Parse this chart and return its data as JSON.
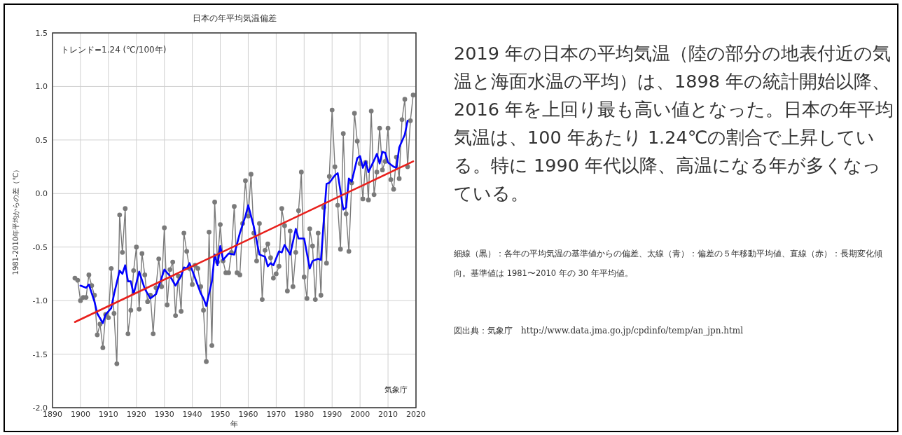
{
  "chart_data": {
    "type": "line",
    "title": "日本の年平均気温偏差",
    "xlabel": "年",
    "ylabel": "1981-2010年平均からの差（℃）",
    "xlim": [
      1890,
      2020
    ],
    "xticks": [
      1890,
      1900,
      1910,
      1920,
      1930,
      1940,
      1950,
      1960,
      1970,
      1980,
      1990,
      2000,
      2010,
      2020
    ],
    "ylim": [
      -2.0,
      1.5
    ],
    "yticks": [
      {
        "value": 1.5,
        "label": "1.5"
      },
      {
        "value": 1.0,
        "label": "1.0"
      },
      {
        "value": 0.5,
        "label": "0.5"
      },
      {
        "value": 0.0,
        "label": "0.0"
      },
      {
        "value": -0.5,
        "label": "-0.5"
      },
      {
        "value": -1.0,
        "label": "-1.0"
      },
      {
        "value": -1.5,
        "label": "-1.5"
      },
      {
        "value": -2.0,
        "label": "-2.0"
      }
    ],
    "grid": true,
    "series": [
      {
        "marker": "circle",
        "color": "#7a7a7a",
        "x": [
          1898,
          1899,
          1900,
          1901,
          1902,
          1903,
          1904,
          1905,
          1906,
          1907,
          1908,
          1909,
          1910,
          1911,
          1912,
          1913,
          1914,
          1915,
          1916,
          1917,
          1918,
          1919,
          1920,
          1921,
          1922,
          1923,
          1924,
          1925,
          1926,
          1927,
          1928,
          1929,
          1930,
          1931,
          1932,
          1933,
          1934,
          1935,
          1936,
          1937,
          1938,
          1939,
          1940,
          1941,
          1942,
          1943,
          1944,
          1945,
          1946,
          1947,
          1948,
          1949,
          1950,
          1951,
          1952,
          1953,
          1954,
          1955,
          1956,
          1957,
          1958,
          1959,
          1960,
          1961,
          1962,
          1963,
          1964,
          1965,
          1966,
          1967,
          1968,
          1969,
          1970,
          1971,
          1972,
          1973,
          1974,
          1975,
          1976,
          1977,
          1978,
          1979,
          1980,
          1981,
          1982,
          1983,
          1984,
          1985,
          1986,
          1987,
          1988,
          1989,
          1990,
          1991,
          1992,
          1993,
          1994,
          1995,
          1996,
          1997,
          1998,
          1999,
          2000,
          2001,
          2002,
          2003,
          2004,
          2005,
          2006,
          2007,
          2008,
          2009,
          2010,
          2011,
          2012,
          2013,
          2014,
          2015,
          2016,
          2017,
          2018,
          2019
        ],
        "values": [
          -0.79,
          -0.81,
          -1.0,
          -0.97,
          -0.97,
          -0.76,
          -0.86,
          -0.95,
          -1.32,
          -1.22,
          -1.44,
          -1.13,
          -1.16,
          -0.7,
          -1.12,
          -1.59,
          -0.2,
          -0.55,
          -0.14,
          -1.31,
          -1.09,
          -0.72,
          -0.5,
          -1.08,
          -0.56,
          -0.76,
          -1.01,
          -0.95,
          -1.31,
          -0.88,
          -0.61,
          -0.87,
          -0.32,
          -1.04,
          -0.71,
          -0.64,
          -1.14,
          -0.77,
          -1.1,
          -0.37,
          -0.54,
          -0.7,
          -0.85,
          -0.67,
          -0.7,
          -0.87,
          -1.09,
          -1.57,
          -0.36,
          -1.42,
          -0.08,
          -0.64,
          -0.29,
          -0.63,
          -0.74,
          -0.74,
          -0.55,
          -0.12,
          -0.74,
          -0.76,
          -0.28,
          0.12,
          -0.21,
          0.18,
          -0.37,
          -0.63,
          -0.28,
          -0.99,
          -0.53,
          -0.47,
          -0.6,
          -0.79,
          -0.75,
          -0.68,
          -0.14,
          -0.3,
          -0.91,
          -0.35,
          -0.87,
          -0.55,
          -0.16,
          0.2,
          -0.78,
          -0.98,
          -0.33,
          -0.49,
          -0.99,
          -0.37,
          -0.95,
          -0.13,
          -0.65,
          0.16,
          0.78,
          0.25,
          -0.11,
          -0.52,
          0.56,
          -0.19,
          -0.54,
          0.1,
          0.75,
          0.49,
          0.28,
          -0.05,
          0.29,
          -0.06,
          0.77,
          -0.01,
          0.2,
          0.61,
          0.22,
          0.3,
          0.61,
          0.13,
          0.04,
          0.34,
          0.14,
          0.69,
          0.88,
          0.25,
          0.68,
          0.92
        ]
      },
      {
        "marker": "none",
        "color": "#0000ff",
        "x": [
          1900,
          1902,
          1903,
          1905,
          1906,
          1908,
          1909,
          1911,
          1912,
          1914,
          1915,
          1916,
          1917,
          1918,
          1919,
          1921,
          1923,
          1925,
          1927,
          1929,
          1930,
          1932,
          1934,
          1936,
          1937,
          1938,
          1939,
          1941,
          1943,
          1944,
          1945,
          1947,
          1948,
          1949,
          1950,
          1951,
          1953,
          1955,
          1957,
          1959,
          1960,
          1962,
          1964,
          1966,
          1967,
          1968,
          1969,
          1971,
          1972,
          1973,
          1975,
          1977,
          1978,
          1980,
          1982,
          1983,
          1985,
          1986,
          1988,
          1989,
          1991,
          1992,
          1994,
          1995,
          1996,
          1997,
          1999,
          2000,
          2001,
          2002,
          2003,
          2005,
          2006,
          2007,
          2008,
          2009,
          2010,
          2012,
          2013,
          2014,
          2016,
          2017
        ],
        "values": [
          -0.86,
          -0.88,
          -0.85,
          -1.01,
          -1.12,
          -1.21,
          -1.13,
          -1.07,
          -0.94,
          -0.72,
          -0.75,
          -0.67,
          -0.82,
          -0.82,
          -0.94,
          -0.73,
          -0.89,
          -0.98,
          -0.94,
          -0.79,
          -0.71,
          -0.77,
          -0.86,
          -0.77,
          -0.69,
          -0.7,
          -0.65,
          -0.79,
          -0.93,
          -0.98,
          -1.05,
          -0.82,
          -0.57,
          -0.67,
          -0.49,
          -0.62,
          -0.56,
          -0.57,
          -0.37,
          -0.21,
          -0.11,
          -0.31,
          -0.57,
          -0.59,
          -0.68,
          -0.65,
          -0.67,
          -0.54,
          -0.55,
          -0.48,
          -0.57,
          -0.33,
          -0.42,
          -0.42,
          -0.7,
          -0.63,
          -0.61,
          -0.62,
          0.09,
          0.1,
          0.17,
          0.19,
          -0.15,
          -0.13,
          0.14,
          0.11,
          0.33,
          0.35,
          0.24,
          0.3,
          0.2,
          0.31,
          0.37,
          0.28,
          0.39,
          0.38,
          0.29,
          0.25,
          0.24,
          0.43,
          0.55,
          0.68
        ]
      },
      {
        "marker": "none",
        "color": "#e8201c",
        "x": [
          1898,
          2019
        ],
        "values": [
          -1.2,
          0.3
        ]
      }
    ],
    "annotations": [
      "トレンド=1.24 (℃/100年)",
      "気象庁",
      "2019 年の日本の平均気温（陸の部分の地表付近の気温と海面水温の平均）は、1898 年の統計開始以降、2016 年を上回り最も高い値となった。日本の年平均気温は、100 年あたり 1.24℃の割合で上昇している。特に 1990 年代以降、高温になる年が多くなっている。",
      "細線（黒）：各年の平均気温の基準値からの偏差、太線（青）：偏差の５年移動平均値、直線（赤）：長期変化傾向。基準値は 1981〜2010 年の 30 年平均値。",
      "図出典：気象庁　http://www.data.jma.go.jp/cpdinfo/temp/an_jpn.html"
    ]
  }
}
